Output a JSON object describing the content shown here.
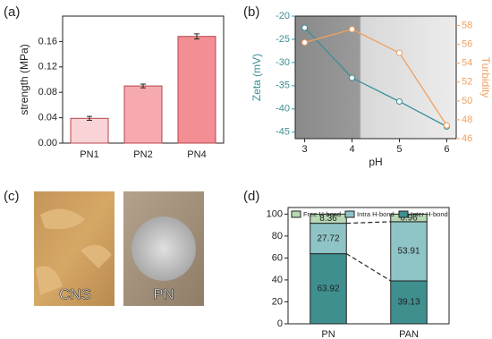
{
  "chart_data": [
    {
      "panel": "(a)",
      "type": "bar",
      "ylabel": "strength (MPa)",
      "categories": [
        "PN1",
        "PN2",
        "PN4"
      ],
      "values": [
        0.039,
        0.09,
        0.168
      ],
      "errors": [
        0.003,
        0.003,
        0.004
      ],
      "colors": [
        "#fad3d6",
        "#f6aab0",
        "#f28e94"
      ],
      "edge_color": "#b5454d",
      "ylim": [
        0,
        0.2
      ],
      "yticks": [
        {
          "value": 0,
          "label": "0.00"
        },
        {
          "value": 0.04,
          "label": "0.04"
        },
        {
          "value": 0.08,
          "label": "0.08"
        },
        {
          "value": 0.12,
          "label": "0.12"
        },
        {
          "value": 0.16,
          "label": "0.16"
        }
      ]
    },
    {
      "panel": "(b)",
      "type": "line",
      "xlabel": "pH",
      "ylabel": "Zeta (mV)",
      "y2label": "Turbidity",
      "x": [
        3,
        4,
        5,
        6
      ],
      "xlim": [
        2.8,
        6.2
      ],
      "xticks": [
        3,
        4,
        5,
        6
      ],
      "ylim": [
        -46.4,
        -20
      ],
      "yticks": [
        -20,
        -25,
        -30,
        -35,
        -40,
        -45
      ],
      "y2lim": [
        46,
        59
      ],
      "y2ticks": [
        46,
        48,
        50,
        52,
        54,
        56,
        58
      ],
      "series": [
        {
          "color": "#3a8f94",
          "values": [
            -22.5,
            -33.3,
            -38.4,
            -43.8
          ]
        },
        {
          "color": "#f0a060",
          "values": [
            56.2,
            57.6,
            55.1,
            47.4
          ],
          "axis": "y2"
        }
      ]
    },
    {
      "panel": "(d)",
      "type": "stacked_bar",
      "categories": [
        "PN",
        "PAN"
      ],
      "ylim": [
        0,
        106
      ],
      "yticks": [
        0,
        20,
        40,
        60,
        80,
        100
      ],
      "series": [
        {
          "name": "Inter H-bond",
          "color": "#3f8f8f",
          "values": [
            63.92,
            39.13
          ]
        },
        {
          "name": "Intra H-bond",
          "color": "#8fc4c6",
          "values": [
            27.72,
            53.91
          ]
        },
        {
          "name": "Free H-bond",
          "color": "#b6d8b4",
          "values": [
            8.36,
            6.96
          ]
        }
      ]
    }
  ],
  "photos": {
    "panel": "(c)",
    "items": [
      "CNS",
      "PN"
    ]
  }
}
